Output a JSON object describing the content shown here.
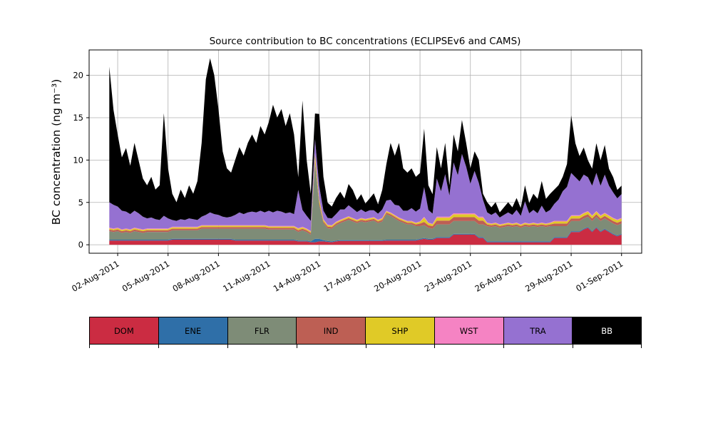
{
  "title": "Source contribution to BC concentrations (ECLIPSEv6 and CAMS)",
  "ylabel": "BC concentration (ng m⁻³)",
  "chart_data": {
    "type": "area",
    "stacked": true,
    "title": "Source contribution to BC concentrations (ECLIPSEv6 and CAMS)",
    "xlabel": "",
    "ylabel": "BC concentration (ng m⁻³)",
    "grid": true,
    "grid_color": "#b0b0b0",
    "legend_position": "bottom",
    "ylim": [
      -1,
      23
    ],
    "xlim": [
      -0.7,
      32.2
    ],
    "yticks": [
      0,
      5,
      10,
      15,
      20
    ],
    "xticks": {
      "positions": [
        1,
        4,
        7,
        10,
        13,
        16,
        19,
        22,
        25,
        28,
        31
      ],
      "labels": [
        "02-Aug-2011",
        "05-Aug-2011",
        "08-Aug-2011",
        "11-Aug-2011",
        "14-Aug-2011",
        "17-Aug-2011",
        "20-Aug-2011",
        "23-Aug-2011",
        "26-Aug-2011",
        "29-Aug-2011",
        "01-Sep-2011"
      ]
    },
    "x": {
      "unit": "days since 01-Aug-2011 00:00",
      "start": 0.5,
      "step": 0.25,
      "count": 123
    },
    "series": [
      {
        "name": "DOM",
        "color": "#cb2c42",
        "values": [
          0.5,
          0.5,
          0.5,
          0.5,
          0.5,
          0.5,
          0.5,
          0.5,
          0.5,
          0.5,
          0.5,
          0.5,
          0.5,
          0.5,
          0.5,
          0.6,
          0.6,
          0.6,
          0.6,
          0.6,
          0.6,
          0.6,
          0.6,
          0.6,
          0.6,
          0.6,
          0.6,
          0.6,
          0.6,
          0.6,
          0.5,
          0.5,
          0.5,
          0.5,
          0.5,
          0.5,
          0.5,
          0.5,
          0.5,
          0.5,
          0.5,
          0.5,
          0.5,
          0.5,
          0.5,
          0.4,
          0.4,
          0.4,
          0.3,
          0.3,
          0.4,
          0.4,
          0.35,
          0.3,
          0.4,
          0.45,
          0.45,
          0.45,
          0.45,
          0.45,
          0.45,
          0.45,
          0.45,
          0.45,
          0.45,
          0.45,
          0.5,
          0.5,
          0.5,
          0.5,
          0.5,
          0.5,
          0.5,
          0.5,
          0.6,
          0.7,
          0.6,
          0.6,
          0.8,
          0.8,
          0.8,
          0.8,
          1.2,
          1.2,
          1.2,
          1.2,
          1.2,
          1.2,
          0.8,
          0.8,
          0.3,
          0.3,
          0.3,
          0.3,
          0.3,
          0.3,
          0.3,
          0.3,
          0.3,
          0.3,
          0.3,
          0.3,
          0.3,
          0.3,
          0.3,
          0.3,
          0.8,
          0.8,
          0.8,
          0.8,
          1.5,
          1.5,
          1.5,
          1.8,
          2.0,
          1.5,
          2.0,
          1.5,
          1.8,
          1.5,
          1.2,
          1.0,
          1.2
        ]
      },
      {
        "name": "ENE",
        "color": "#2f6fa8",
        "values": [
          0.1,
          0.1,
          0.1,
          0.1,
          0.1,
          0.1,
          0.1,
          0.1,
          0.1,
          0.1,
          0.1,
          0.1,
          0.1,
          0.1,
          0.1,
          0.1,
          0.1,
          0.1,
          0.1,
          0.1,
          0.1,
          0.1,
          0.1,
          0.1,
          0.1,
          0.1,
          0.1,
          0.1,
          0.1,
          0.1,
          0.1,
          0.1,
          0.1,
          0.1,
          0.1,
          0.1,
          0.1,
          0.1,
          0.1,
          0.1,
          0.1,
          0.1,
          0.1,
          0.1,
          0.1,
          0.1,
          0.1,
          0.1,
          0.1,
          0.4,
          0.3,
          0.15,
          0.1,
          0.1,
          0.1,
          0.1,
          0.1,
          0.1,
          0.1,
          0.1,
          0.1,
          0.1,
          0.1,
          0.1,
          0.1,
          0.1,
          0.1,
          0.1,
          0.1,
          0.1,
          0.1,
          0.1,
          0.1,
          0.1,
          0.1,
          0.1,
          0.1,
          0.1,
          0.1,
          0.1,
          0.1,
          0.1,
          0.1,
          0.1,
          0.1,
          0.1,
          0.1,
          0.1,
          0.1,
          0.1,
          0.1,
          0.1,
          0.1,
          0.1,
          0.1,
          0.1,
          0.1,
          0.1,
          0.1,
          0.1,
          0.1,
          0.1,
          0.1,
          0.1,
          0.1,
          0.1,
          0.1,
          0.1,
          0.1,
          0.1,
          0.1,
          0.1,
          0.1,
          0.1,
          0.1,
          0.1,
          0.1,
          0.1,
          0.1,
          0.1,
          0.1,
          0.1,
          0.1
        ]
      },
      {
        "name": "FLR",
        "color": "#7e8c77",
        "values": [
          1.0,
          0.9,
          1.0,
          0.8,
          0.9,
          0.8,
          1.0,
          0.9,
          0.8,
          0.9,
          0.9,
          0.9,
          0.9,
          0.9,
          0.9,
          1.0,
          1.0,
          1.0,
          1.0,
          1.0,
          1.0,
          1.0,
          1.2,
          1.2,
          1.2,
          1.2,
          1.2,
          1.2,
          1.2,
          1.2,
          1.3,
          1.3,
          1.3,
          1.3,
          1.3,
          1.3,
          1.3,
          1.3,
          1.2,
          1.2,
          1.2,
          1.2,
          1.2,
          1.2,
          1.2,
          1.0,
          1.2,
          1.0,
          0.8,
          9.0,
          4.0,
          2.0,
          1.5,
          1.5,
          1.8,
          2.0,
          2.2,
          2.4,
          2.2,
          2.0,
          2.2,
          2.1,
          2.2,
          2.3,
          2.0,
          2.2,
          3.0,
          2.8,
          2.5,
          2.2,
          2.0,
          1.8,
          1.8,
          1.6,
          1.5,
          1.5,
          1.3,
          1.2,
          1.5,
          1.5,
          1.5,
          1.5,
          1.5,
          1.5,
          1.5,
          1.5,
          1.5,
          1.5,
          1.5,
          1.5,
          1.8,
          1.7,
          1.8,
          1.6,
          1.7,
          1.8,
          1.7,
          1.8,
          1.6,
          1.8,
          1.7,
          1.8,
          1.7,
          1.8,
          1.7,
          1.8,
          1.3,
          1.3,
          1.3,
          1.3,
          1.2,
          1.2,
          1.2,
          1.2,
          1.2,
          1.2,
          1.2,
          1.2,
          1.2,
          1.2,
          1.2,
          1.2,
          1.2
        ]
      },
      {
        "name": "IND",
        "color": "#bd5f54",
        "values": [
          0.2,
          0.2,
          0.2,
          0.2,
          0.2,
          0.2,
          0.2,
          0.2,
          0.2,
          0.2,
          0.2,
          0.2,
          0.2,
          0.2,
          0.2,
          0.2,
          0.2,
          0.2,
          0.2,
          0.2,
          0.2,
          0.2,
          0.2,
          0.2,
          0.2,
          0.2,
          0.2,
          0.2,
          0.2,
          0.2,
          0.2,
          0.2,
          0.2,
          0.2,
          0.2,
          0.2,
          0.2,
          0.2,
          0.2,
          0.2,
          0.2,
          0.2,
          0.2,
          0.2,
          0.2,
          0.2,
          0.2,
          0.2,
          0.2,
          0.3,
          0.25,
          0.2,
          0.2,
          0.2,
          0.2,
          0.2,
          0.2,
          0.2,
          0.2,
          0.2,
          0.2,
          0.2,
          0.2,
          0.2,
          0.2,
          0.2,
          0.2,
          0.2,
          0.2,
          0.2,
          0.2,
          0.2,
          0.2,
          0.2,
          0.3,
          0.4,
          0.3,
          0.3,
          0.45,
          0.45,
          0.45,
          0.45,
          0.45,
          0.45,
          0.45,
          0.45,
          0.45,
          0.45,
          0.45,
          0.45,
          0.2,
          0.2,
          0.2,
          0.2,
          0.2,
          0.2,
          0.2,
          0.2,
          0.2,
          0.2,
          0.2,
          0.2,
          0.2,
          0.2,
          0.2,
          0.2,
          0.3,
          0.3,
          0.3,
          0.3,
          0.3,
          0.3,
          0.3,
          0.3,
          0.3,
          0.3,
          0.3,
          0.3,
          0.3,
          0.3,
          0.3,
          0.3,
          0.3
        ]
      },
      {
        "name": "SHP",
        "color": "#e0ca27",
        "values": [
          0.15,
          0.15,
          0.15,
          0.15,
          0.15,
          0.15,
          0.15,
          0.15,
          0.15,
          0.15,
          0.15,
          0.15,
          0.15,
          0.15,
          0.15,
          0.15,
          0.15,
          0.15,
          0.15,
          0.15,
          0.15,
          0.15,
          0.15,
          0.15,
          0.15,
          0.15,
          0.15,
          0.15,
          0.15,
          0.15,
          0.15,
          0.15,
          0.15,
          0.15,
          0.15,
          0.15,
          0.15,
          0.15,
          0.15,
          0.15,
          0.15,
          0.15,
          0.15,
          0.15,
          0.15,
          0.2,
          0.15,
          0.15,
          0.15,
          0.7,
          0.4,
          0.2,
          0.15,
          0.15,
          0.15,
          0.15,
          0.15,
          0.15,
          0.15,
          0.15,
          0.15,
          0.15,
          0.15,
          0.15,
          0.15,
          0.15,
          0.15,
          0.15,
          0.15,
          0.15,
          0.15,
          0.15,
          0.15,
          0.15,
          0.2,
          0.5,
          0.25,
          0.2,
          0.35,
          0.35,
          0.35,
          0.35,
          0.35,
          0.35,
          0.35,
          0.35,
          0.35,
          0.35,
          0.35,
          0.35,
          0.15,
          0.15,
          0.15,
          0.15,
          0.15,
          0.15,
          0.15,
          0.15,
          0.15,
          0.15,
          0.15,
          0.15,
          0.15,
          0.15,
          0.15,
          0.15,
          0.25,
          0.25,
          0.25,
          0.25,
          0.3,
          0.3,
          0.3,
          0.3,
          0.3,
          0.3,
          0.3,
          0.3,
          0.3,
          0.3,
          0.3,
          0.3,
          0.3
        ]
      },
      {
        "name": "WST",
        "color": "#f583c3",
        "values": [
          0.07,
          0.07,
          0.07,
          0.07,
          0.07,
          0.07,
          0.07,
          0.07,
          0.07,
          0.07,
          0.07,
          0.07,
          0.07,
          0.07,
          0.07,
          0.07,
          0.07,
          0.07,
          0.07,
          0.07,
          0.07,
          0.07,
          0.07,
          0.07,
          0.07,
          0.07,
          0.07,
          0.07,
          0.07,
          0.07,
          0.07,
          0.07,
          0.07,
          0.07,
          0.07,
          0.07,
          0.07,
          0.07,
          0.07,
          0.07,
          0.07,
          0.07,
          0.07,
          0.07,
          0.07,
          0.07,
          0.07,
          0.07,
          0.07,
          0.1,
          0.1,
          0.07,
          0.07,
          0.07,
          0.07,
          0.07,
          0.07,
          0.07,
          0.07,
          0.07,
          0.07,
          0.07,
          0.07,
          0.07,
          0.07,
          0.07,
          0.07,
          0.07,
          0.07,
          0.07,
          0.07,
          0.07,
          0.07,
          0.07,
          0.07,
          0.1,
          0.07,
          0.07,
          0.12,
          0.12,
          0.12,
          0.12,
          0.12,
          0.12,
          0.12,
          0.12,
          0.12,
          0.12,
          0.12,
          0.12,
          0.07,
          0.07,
          0.07,
          0.07,
          0.07,
          0.07,
          0.07,
          0.07,
          0.07,
          0.07,
          0.07,
          0.07,
          0.07,
          0.07,
          0.07,
          0.07,
          0.08,
          0.08,
          0.08,
          0.08,
          0.08,
          0.08,
          0.08,
          0.08,
          0.08,
          0.08,
          0.08,
          0.08,
          0.08,
          0.08,
          0.08,
          0.08,
          0.08
        ]
      },
      {
        "name": "TRA",
        "color": "#9571d1",
        "values": [
          3.0,
          2.8,
          2.5,
          2.2,
          2.0,
          1.8,
          2.0,
          1.8,
          1.5,
          1.2,
          1.3,
          1.1,
          1.0,
          1.5,
          1.2,
          0.8,
          0.7,
          0.9,
          0.8,
          1.0,
          0.9,
          0.8,
          1.0,
          1.2,
          1.5,
          1.3,
          1.2,
          1.0,
          0.9,
          1.0,
          1.2,
          1.5,
          1.3,
          1.5,
          1.6,
          1.5,
          1.7,
          1.5,
          1.8,
          1.6,
          1.8,
          1.7,
          1.5,
          1.6,
          1.4,
          4.5,
          2.0,
          1.5,
          1.2,
          1.7,
          1.5,
          1.0,
          0.8,
          0.8,
          0.9,
          1.2,
          1.0,
          1.3,
          1.1,
          0.9,
          1.0,
          0.8,
          0.9,
          0.8,
          0.7,
          1.0,
          1.2,
          1.5,
          1.2,
          1.4,
          1.0,
          1.2,
          1.5,
          1.3,
          1.5,
          3.5,
          1.5,
          1.2,
          4.5,
          3.0,
          5.0,
          2.5,
          6.0,
          4.5,
          7.0,
          5.5,
          3.5,
          5.0,
          4.0,
          2.0,
          1.2,
          1.0,
          1.2,
          0.8,
          1.0,
          1.2,
          1.0,
          1.5,
          1.0,
          2.5,
          1.2,
          1.5,
          1.2,
          2.0,
          1.3,
          1.5,
          2.0,
          2.5,
          3.5,
          4.0,
          5.0,
          4.5,
          4.0,
          4.5,
          4.0,
          3.5,
          4.5,
          3.5,
          4.5,
          3.5,
          3.0,
          2.5,
          2.8
        ]
      },
      {
        "name": "BB",
        "color": "#000000",
        "values": [
          16.0,
          11.2,
          8.5,
          6.3,
          7.5,
          5.7,
          8.0,
          6.2,
          4.5,
          3.9,
          4.8,
          3.5,
          4.1,
          12.1,
          5.9,
          3.1,
          2.2,
          3.5,
          2.6,
          3.9,
          3.0,
          4.6,
          8.7,
          16.0,
          18.2,
          16.4,
          12.5,
          7.7,
          5.8,
          5.2,
          6.5,
          7.7,
          6.9,
          8.2,
          9.1,
          8.2,
          10.0,
          9.2,
          10.5,
          12.7,
          11.0,
          12.1,
          10.3,
          11.7,
          9.4,
          1.5,
          12.9,
          6.6,
          3.2,
          3.0,
          8.5,
          4.0,
          1.8,
          1.4,
          1.9,
          2.1,
          1.3,
          2.5,
          2.2,
          1.4,
          1.8,
          1.0,
          1.4,
          2.0,
          1.1,
          2.3,
          4.3,
          6.7,
          5.8,
          7.4,
          5.0,
          4.5,
          4.7,
          4.1,
          4.2,
          6.9,
          2.9,
          2.3,
          3.7,
          2.7,
          3.7,
          1.2,
          3.3,
          2.8,
          4.0,
          2.8,
          1.8,
          2.3,
          2.7,
          0.7,
          1.2,
          0.9,
          1.2,
          0.6,
          0.9,
          1.2,
          0.9,
          1.4,
          0.9,
          1.9,
          1.2,
          1.9,
          1.7,
          2.9,
          1.6,
          1.9,
          1.7,
          1.7,
          1.7,
          2.7,
          6.8,
          4.0,
          3.0,
          3.2,
          2.0,
          2.0,
          3.5,
          3.0,
          3.5,
          2.0,
          1.8,
          1.0,
          1.0
        ]
      }
    ],
    "legend_labels": [
      "DOM",
      "ENE",
      "FLR",
      "IND",
      "SHP",
      "WST",
      "TRA",
      "BB"
    ]
  }
}
